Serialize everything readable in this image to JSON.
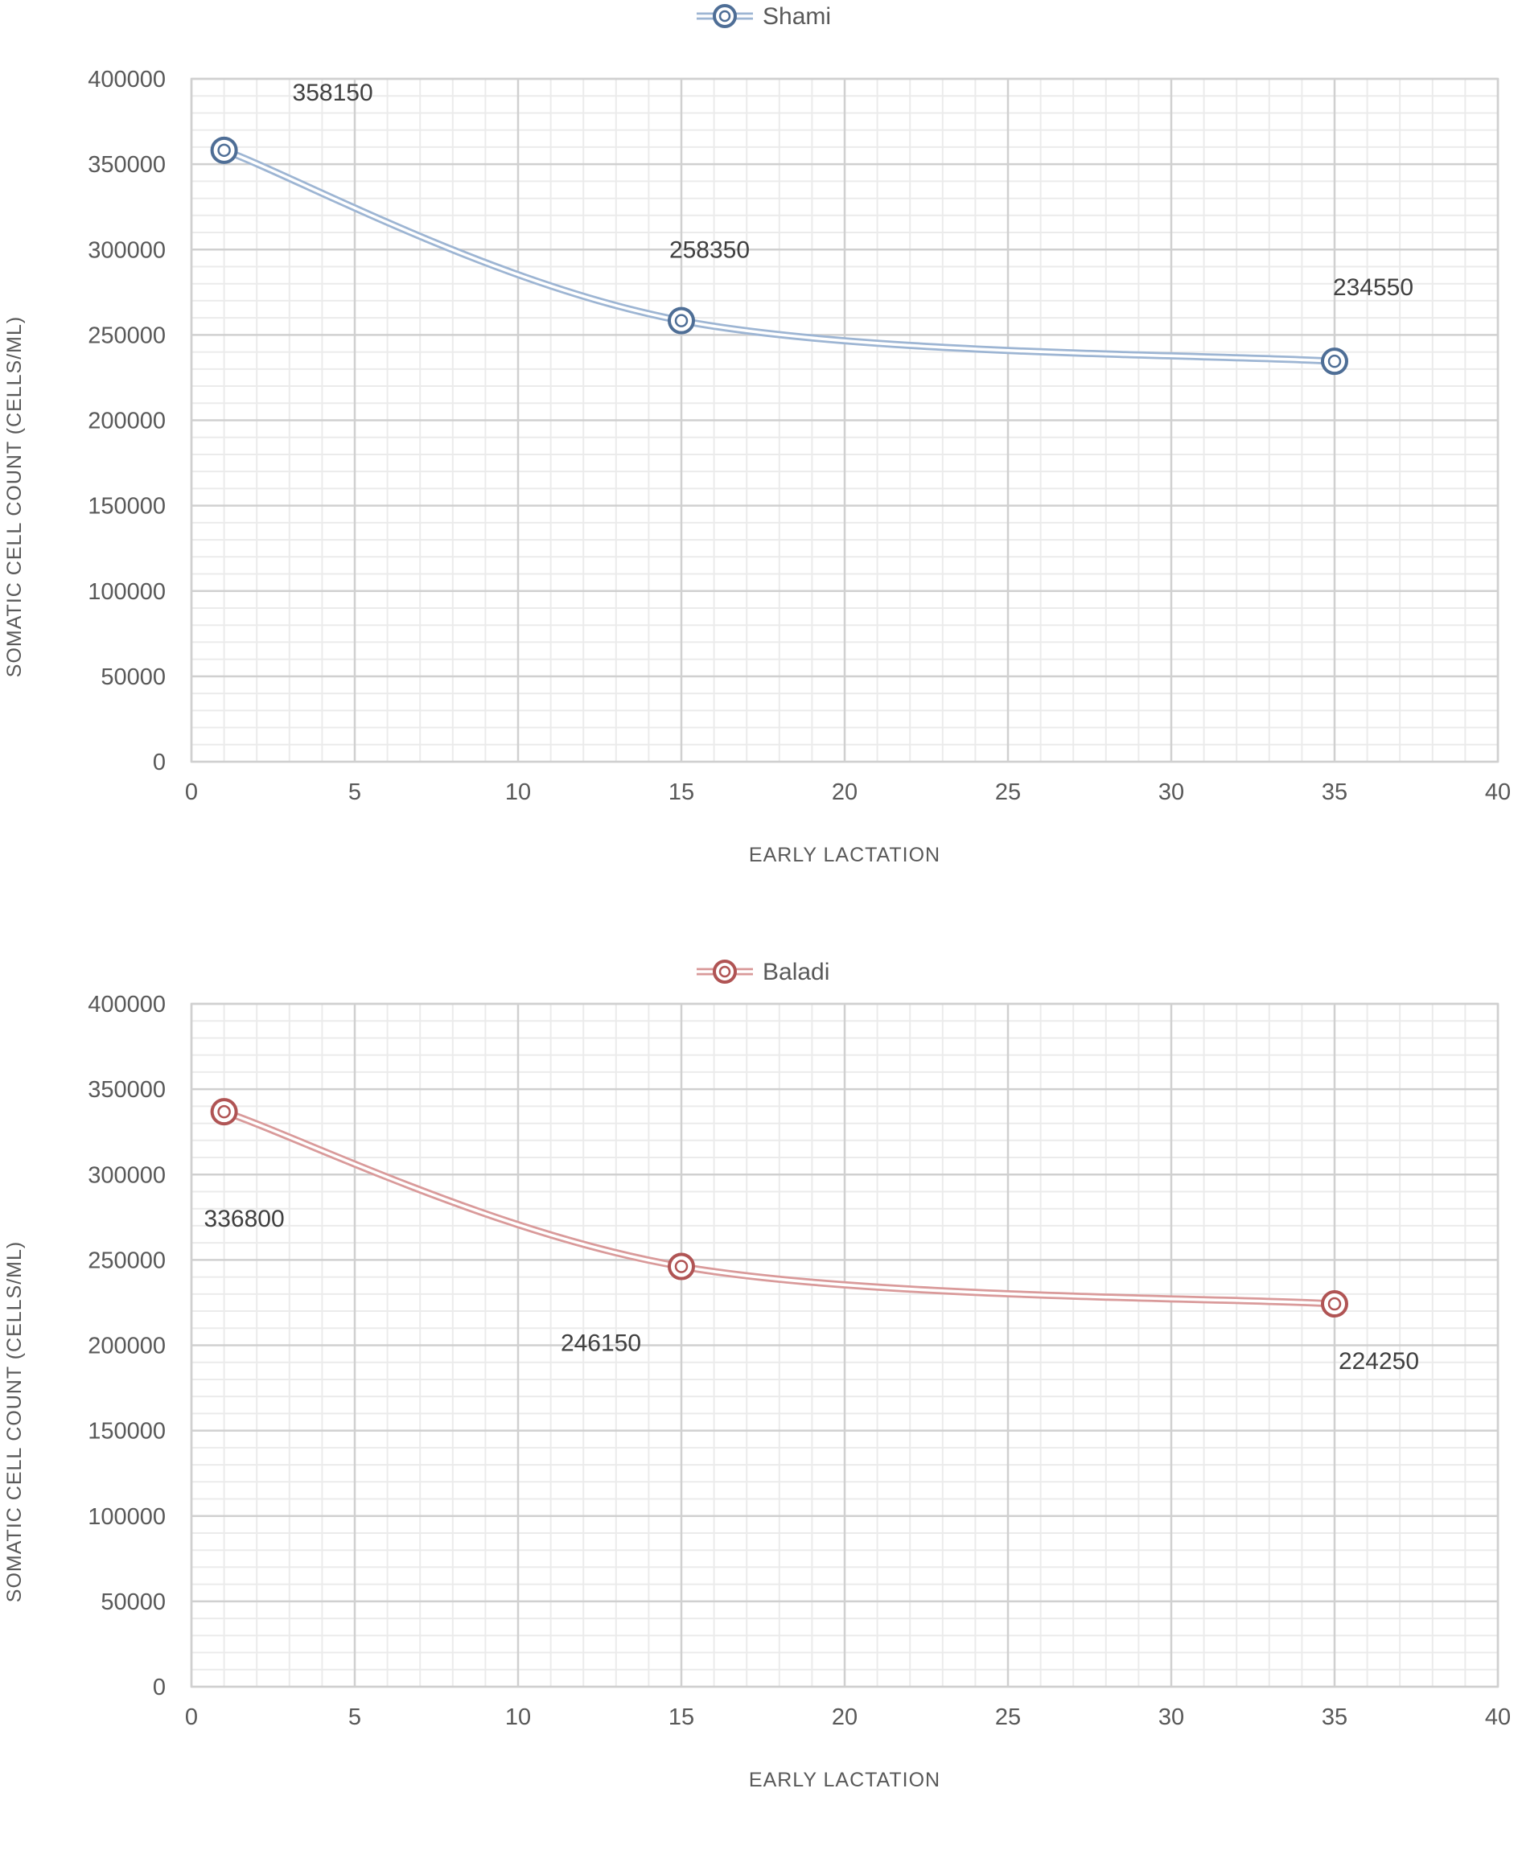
{
  "chart_data": [
    {
      "type": "line",
      "xlabel": "EARLY LACTATION",
      "ylabel": "SOMATIC CELL COUNT  (CELLS/ML)",
      "xlim": [
        0,
        40
      ],
      "ylim": [
        0,
        400000
      ],
      "x_ticks": [
        "0",
        "5",
        "10",
        "15",
        "20",
        "25",
        "30",
        "35",
        "40"
      ],
      "y_ticks": [
        "0",
        "50000",
        "100000",
        "150000",
        "200000",
        "250000",
        "300000",
        "350000",
        "400000"
      ],
      "grid": true,
      "legend_position": "top",
      "series": [
        {
          "name": "Shami",
          "color": "#4e6e96",
          "line_color": "#9db5d3",
          "x": [
            1,
            15,
            35
          ],
          "y": [
            358150,
            258350,
            234550
          ],
          "labels": [
            "358150",
            "258350",
            "234550"
          ]
        }
      ]
    },
    {
      "type": "line",
      "xlabel": "EARLY LACTATION",
      "ylabel": "SOMATIC CELL COUNT  (CELLS/ML)",
      "xlim": [
        0,
        40
      ],
      "ylim": [
        0,
        400000
      ],
      "x_ticks": [
        "0",
        "5",
        "10",
        "15",
        "20",
        "25",
        "30",
        "35",
        "40"
      ],
      "y_ticks": [
        "0",
        "50000",
        "100000",
        "150000",
        "200000",
        "250000",
        "300000",
        "350000",
        "400000"
      ],
      "grid": true,
      "legend_position": "top",
      "series": [
        {
          "name": "Baladi",
          "color": "#b05454",
          "line_color": "#d99a9a",
          "x": [
            1,
            15,
            35
          ],
          "y": [
            336800,
            246150,
            224250
          ],
          "labels": [
            "336800",
            "246150",
            "224250"
          ]
        }
      ]
    }
  ]
}
